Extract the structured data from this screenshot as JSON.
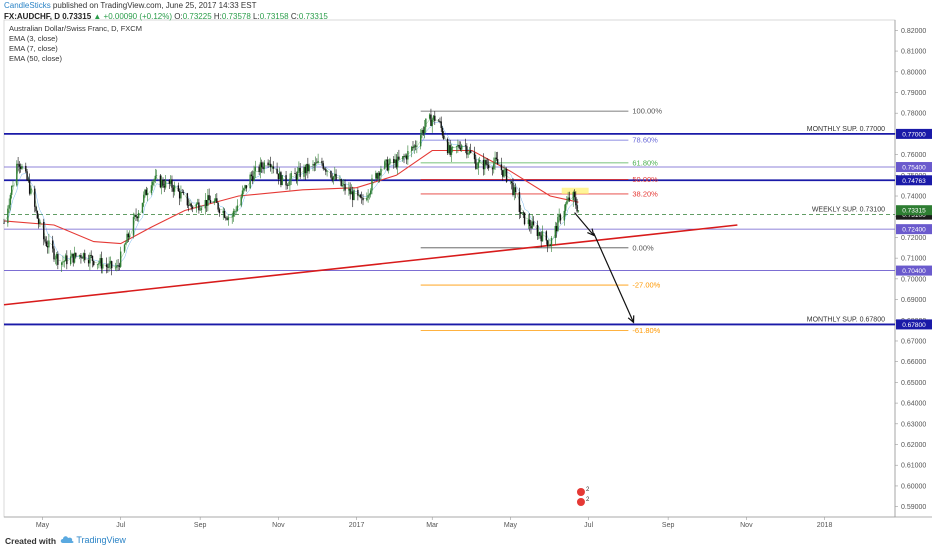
{
  "header": {
    "author": "CandleSticks",
    "published": "published on TradingView.com, June 25, 2017 14:33 EST",
    "symbol": "FX:AUDCHF, D",
    "last": "0.73315",
    "change": "▲ +0.00090 (+0.12%)",
    "o_label": "O:",
    "o_value": "0.73225",
    "h_label": "H:",
    "h_value": "0.73578",
    "l_label": "L:",
    "l_value": "0.73158",
    "c_label": "C:",
    "c_value": "0.73315"
  },
  "legend": {
    "instrument": "Australian Dollar/Swiss Franc, D, FXCM",
    "ema3": "EMA (3, close)",
    "ema7": "EMA (7, close)",
    "ema50": "EMA (50, close)"
  },
  "footer": {
    "created": "Created with",
    "brand": "TradingView"
  },
  "colors": {
    "background": "#ffffff",
    "bull_candle": "#2e7d32",
    "bear_candle": "#111111",
    "ema50": "#e53935",
    "trendline": "#d81b1b",
    "monthly_support": "#1a1aa8",
    "axis_text": "#555555"
  },
  "chart_data": {
    "type": "candlestick",
    "symbol": "AUDCHF",
    "timeframe": "D",
    "ylim": [
      0.585,
      0.825
    ],
    "y_ticks": [
      "0.82000",
      "0.81000",
      "0.80000",
      "0.79000",
      "0.78000",
      "0.77000",
      "0.76000",
      "0.75000",
      "0.74000",
      "0.73000",
      "0.72000",
      "0.71000",
      "0.70000",
      "0.69000",
      "0.68000",
      "0.67000",
      "0.66000",
      "0.65000",
      "0.64000",
      "0.63000",
      "0.62000",
      "0.61000",
      "0.60000",
      "0.59000"
    ],
    "y_tick_values": [
      0.82,
      0.81,
      0.8,
      0.79,
      0.78,
      0.77,
      0.76,
      0.75,
      0.74,
      0.73,
      0.72,
      0.71,
      0.7,
      0.69,
      0.68,
      0.67,
      0.66,
      0.65,
      0.64,
      0.63,
      0.62,
      0.61,
      0.6,
      0.59
    ],
    "x_ticks": [
      {
        "label": "May",
        "date": "2016-05-01"
      },
      {
        "label": "Jul",
        "date": "2016-07-01"
      },
      {
        "label": "Sep",
        "date": "2016-09-01"
      },
      {
        "label": "Nov",
        "date": "2016-11-01"
      },
      {
        "label": "2017",
        "date": "2017-01-01"
      },
      {
        "label": "Mar",
        "date": "2017-03-01"
      },
      {
        "label": "May",
        "date": "2017-05-01"
      },
      {
        "label": "Jul",
        "date": "2017-07-01"
      },
      {
        "label": "Sep",
        "date": "2017-09-01"
      },
      {
        "label": "Nov",
        "date": "2017-11-01"
      },
      {
        "label": "2018",
        "date": "2018-01-01"
      }
    ],
    "price_path": [
      {
        "date": "2016-04-01",
        "close": 0.727
      },
      {
        "date": "2016-04-12",
        "close": 0.758
      },
      {
        "date": "2016-04-20",
        "close": 0.746
      },
      {
        "date": "2016-05-01",
        "close": 0.72
      },
      {
        "date": "2016-05-15",
        "close": 0.708
      },
      {
        "date": "2016-06-01",
        "close": 0.712
      },
      {
        "date": "2016-06-20",
        "close": 0.706
      },
      {
        "date": "2016-06-28",
        "close": 0.705
      },
      {
        "date": "2016-07-10",
        "close": 0.726
      },
      {
        "date": "2016-07-25",
        "close": 0.748
      },
      {
        "date": "2016-08-10",
        "close": 0.745
      },
      {
        "date": "2016-08-25",
        "close": 0.735
      },
      {
        "date": "2016-09-10",
        "close": 0.738
      },
      {
        "date": "2016-09-25",
        "close": 0.729
      },
      {
        "date": "2016-10-10",
        "close": 0.749
      },
      {
        "date": "2016-10-25",
        "close": 0.758
      },
      {
        "date": "2016-11-05",
        "close": 0.746
      },
      {
        "date": "2016-11-20",
        "close": 0.752
      },
      {
        "date": "2016-12-05",
        "close": 0.756
      },
      {
        "date": "2016-12-20",
        "close": 0.745
      },
      {
        "date": "2017-01-05",
        "close": 0.737
      },
      {
        "date": "2017-01-20",
        "close": 0.754
      },
      {
        "date": "2017-02-05",
        "close": 0.757
      },
      {
        "date": "2017-02-15",
        "close": 0.764
      },
      {
        "date": "2017-02-25",
        "close": 0.776
      },
      {
        "date": "2017-03-05",
        "close": 0.778
      },
      {
        "date": "2017-03-15",
        "close": 0.76
      },
      {
        "date": "2017-03-25",
        "close": 0.766
      },
      {
        "date": "2017-04-05",
        "close": 0.755
      },
      {
        "date": "2017-04-20",
        "close": 0.756
      },
      {
        "date": "2017-05-01",
        "close": 0.747
      },
      {
        "date": "2017-05-10",
        "close": 0.73
      },
      {
        "date": "2017-05-20",
        "close": 0.724
      },
      {
        "date": "2017-06-01",
        "close": 0.717
      },
      {
        "date": "2017-06-10",
        "close": 0.732
      },
      {
        "date": "2017-06-18",
        "close": 0.741
      },
      {
        "date": "2017-06-23",
        "close": 0.7332
      }
    ],
    "ema50_path": [
      {
        "date": "2016-04-01",
        "value": 0.728
      },
      {
        "date": "2016-05-10",
        "value": 0.726
      },
      {
        "date": "2016-06-10",
        "value": 0.718
      },
      {
        "date": "2016-07-01",
        "value": 0.717
      },
      {
        "date": "2016-07-25",
        "value": 0.725
      },
      {
        "date": "2016-08-20",
        "value": 0.733
      },
      {
        "date": "2016-10-01",
        "value": 0.74
      },
      {
        "date": "2016-11-20",
        "value": 0.743
      },
      {
        "date": "2017-01-01",
        "value": 0.744
      },
      {
        "date": "2017-02-01",
        "value": 0.75
      },
      {
        "date": "2017-03-01",
        "value": 0.762
      },
      {
        "date": "2017-04-01",
        "value": 0.762
      },
      {
        "date": "2017-05-01",
        "value": 0.752
      },
      {
        "date": "2017-06-01",
        "value": 0.74
      },
      {
        "date": "2017-06-23",
        "value": 0.737
      }
    ],
    "horizontal_levels": [
      {
        "value": 0.77,
        "color": "#1a1aa8",
        "label": "MONTHLY SUP. 0.77000",
        "badge": "0.77000"
      },
      {
        "value": 0.754,
        "color": "#6a5acd",
        "label": "",
        "badge": "0.75400"
      },
      {
        "value": 0.7476,
        "color": "#1a1aa8",
        "label": "",
        "badge": "0.74763"
      },
      {
        "value": 0.731,
        "color": "#2e7d32",
        "label": "WEEKLY SUP. 0.73100",
        "badge": "0.73100",
        "dashed": true
      },
      {
        "value": 0.724,
        "color": "#6a5acd",
        "label": "",
        "badge": "0.72400"
      },
      {
        "value": 0.704,
        "color": "#6a5acd",
        "label": "",
        "badge": "0.70400"
      },
      {
        "value": 0.678,
        "color": "#1a1aa8",
        "label": "MONTHLY SUP. 0.67800",
        "badge": "0.67800"
      }
    ],
    "last_price_badge": "0.73315",
    "fibonacci": {
      "start_date": "2017-02-20",
      "end_date": "2017-08-01",
      "levels": [
        {
          "label": "100.00%",
          "value": 0.781,
          "color": "#555555"
        },
        {
          "label": "78.60%",
          "value": 0.767,
          "color": "#6a6ad8"
        },
        {
          "label": "61.80%",
          "value": 0.756,
          "color": "#4caf50"
        },
        {
          "label": "50.00%",
          "value": 0.748,
          "color": "#e53935"
        },
        {
          "label": "38.20%",
          "value": 0.741,
          "color": "#e53935"
        },
        {
          "label": "0.00%",
          "value": 0.715,
          "color": "#555555"
        },
        {
          "label": "-27.00%",
          "value": 0.697,
          "color": "#ff9800"
        },
        {
          "label": "-61.80%",
          "value": 0.675,
          "color": "#ff9800"
        }
      ]
    },
    "trendline": {
      "start": {
        "date": "2016-04-01",
        "value": 0.6875
      },
      "end": {
        "date": "2017-10-25",
        "value": 0.726
      }
    },
    "highlight_zone": {
      "start_date": "2017-06-10",
      "end_date": "2017-07-01",
      "top": 0.744,
      "bottom": 0.741
    },
    "projection_arrows": [
      {
        "from": {
          "date": "2017-06-20",
          "value": 0.732
        },
        "to": {
          "date": "2017-07-05",
          "value": 0.721
        }
      },
      {
        "from": {
          "date": "2017-07-05",
          "value": 0.722
        },
        "to": {
          "date": "2017-08-05",
          "value": 0.679
        }
      }
    ],
    "event_markers": [
      {
        "date": "2017-06-25",
        "labels": [
          "2",
          "2"
        ]
      }
    ]
  }
}
